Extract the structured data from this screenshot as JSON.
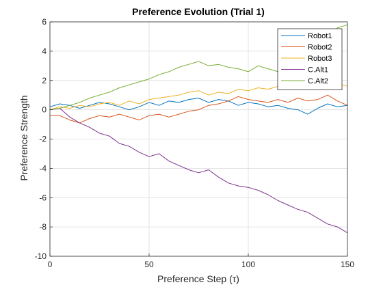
{
  "chart_data": {
    "type": "line",
    "title": "Preference Evolution (Trial 1)",
    "xlabel": "Preference Step (τ)",
    "ylabel": "Preference Strength",
    "xlim": [
      0,
      150
    ],
    "ylim": [
      -10,
      6
    ],
    "xticks": [
      0,
      50,
      100,
      150
    ],
    "yticks": [
      -10,
      -8,
      -6,
      -4,
      -2,
      0,
      2,
      4,
      6
    ],
    "grid": true,
    "legend_location": "top-right",
    "series": [
      {
        "name": "Robot1",
        "color": "#0072BD",
        "x": [
          0,
          5,
          10,
          15,
          20,
          25,
          30,
          35,
          40,
          45,
          50,
          55,
          60,
          65,
          70,
          75,
          80,
          85,
          90,
          95,
          100,
          105,
          110,
          115,
          120,
          125,
          130,
          135,
          140,
          145,
          150
        ],
        "y": [
          0.2,
          0.4,
          0.3,
          0.1,
          0.3,
          0.5,
          0.4,
          0.2,
          0.0,
          0.2,
          0.5,
          0.3,
          0.6,
          0.5,
          0.7,
          0.8,
          0.5,
          0.7,
          0.6,
          0.3,
          0.5,
          0.4,
          0.2,
          0.3,
          0.1,
          0.0,
          -0.3,
          0.1,
          0.4,
          0.2,
          0.3
        ]
      },
      {
        "name": "Robot2",
        "color": "#D95319",
        "x": [
          0,
          5,
          10,
          15,
          20,
          25,
          30,
          35,
          40,
          45,
          50,
          55,
          60,
          65,
          70,
          75,
          80,
          85,
          90,
          95,
          100,
          105,
          110,
          115,
          120,
          125,
          130,
          135,
          140,
          145,
          150
        ],
        "y": [
          -0.4,
          -0.4,
          -0.7,
          -0.9,
          -0.6,
          -0.4,
          -0.5,
          -0.3,
          -0.5,
          -0.7,
          -0.4,
          -0.3,
          -0.5,
          -0.3,
          -0.1,
          0.0,
          0.3,
          0.4,
          0.6,
          0.9,
          0.7,
          0.6,
          0.5,
          0.7,
          0.5,
          0.8,
          0.6,
          0.7,
          1.0,
          0.6,
          0.3
        ]
      },
      {
        "name": "Robot3",
        "color": "#EDB120",
        "x": [
          0,
          5,
          10,
          15,
          20,
          25,
          30,
          35,
          40,
          45,
          50,
          55,
          60,
          65,
          70,
          75,
          80,
          85,
          90,
          95,
          100,
          105,
          110,
          115,
          120,
          125,
          130,
          135,
          140,
          145,
          150
        ],
        "y": [
          0.0,
          0.2,
          0.1,
          0.3,
          0.2,
          0.4,
          0.5,
          0.3,
          0.6,
          0.4,
          0.7,
          0.8,
          0.9,
          1.0,
          1.2,
          1.3,
          1.0,
          1.2,
          1.1,
          1.4,
          1.3,
          1.5,
          1.4,
          1.6,
          1.7,
          1.5,
          1.6,
          1.7,
          1.9,
          1.8,
          1.6
        ]
      },
      {
        "name": "C.Alt1",
        "color": "#7E2F8E",
        "x": [
          0,
          5,
          10,
          15,
          20,
          25,
          30,
          35,
          40,
          45,
          50,
          55,
          60,
          65,
          70,
          75,
          80,
          85,
          90,
          95,
          100,
          105,
          110,
          115,
          120,
          125,
          130,
          135,
          140,
          145,
          150
        ],
        "y": [
          0.0,
          0.1,
          -0.5,
          -0.9,
          -1.2,
          -1.6,
          -1.8,
          -2.3,
          -2.5,
          -2.9,
          -3.2,
          -3.0,
          -3.5,
          -3.8,
          -4.1,
          -4.3,
          -4.1,
          -4.6,
          -5.0,
          -5.2,
          -5.3,
          -5.5,
          -5.8,
          -6.2,
          -6.5,
          -6.8,
          -7.0,
          -7.4,
          -7.8,
          -8.0,
          -8.4
        ]
      },
      {
        "name": "C.Alt2",
        "color": "#77AC30",
        "x": [
          0,
          5,
          10,
          15,
          20,
          25,
          30,
          35,
          40,
          45,
          50,
          55,
          60,
          65,
          70,
          75,
          80,
          85,
          90,
          95,
          100,
          105,
          110,
          115,
          120,
          125,
          130,
          135,
          140,
          145,
          150
        ],
        "y": [
          0.0,
          0.1,
          0.3,
          0.5,
          0.8,
          1.0,
          1.2,
          1.5,
          1.7,
          1.9,
          2.1,
          2.4,
          2.6,
          2.9,
          3.1,
          3.3,
          3.0,
          3.1,
          2.9,
          2.8,
          2.6,
          3.0,
          2.8,
          2.6,
          3.0,
          3.4,
          3.9,
          4.5,
          5.0,
          5.6,
          5.8
        ]
      }
    ]
  }
}
